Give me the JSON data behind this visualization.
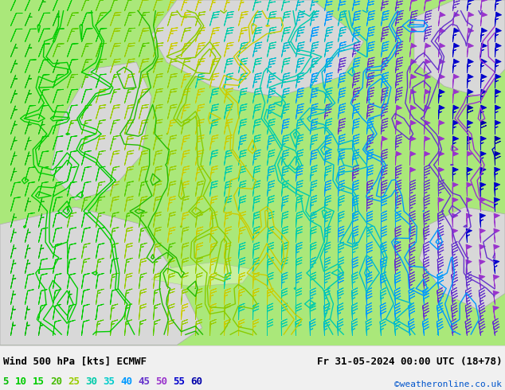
{
  "title_left": "Wind 500 hPa [kts] ECMWF",
  "title_right": "Fr 31-05-2024 00:00 UTC (18+78)",
  "credit": "©weatheronline.co.uk",
  "legend_values": [
    5,
    10,
    15,
    20,
    25,
    30,
    35,
    40,
    45,
    50,
    55,
    60
  ],
  "legend_colors": [
    "#00bb00",
    "#00cc00",
    "#00cc00",
    "#44bb00",
    "#99cc00",
    "#00ccaa",
    "#00cccc",
    "#0099ff",
    "#6633cc",
    "#9933cc",
    "#0000cc",
    "#0000aa"
  ],
  "bg_gray": "#d8d8d8",
  "bg_green": "#aae87a",
  "bg_white": "#f0f0f0",
  "bottom_bar_color": "#ffffff",
  "text_color": "#000000",
  "figsize": [
    6.34,
    4.9
  ],
  "dpi": 100,
  "speed_colors": {
    "5": "#00bb00",
    "10": "#00cc00",
    "15": "#55cc00",
    "20": "#99cc00",
    "25": "#cccc00",
    "30": "#00ccaa",
    "35": "#00bbcc",
    "40": "#0099ff",
    "45": "#6633cc",
    "50": "#9933cc",
    "55": "#0000cc",
    "60": "#0000aa"
  },
  "isoline_colors": [
    "#00cc00",
    "#00cc00",
    "#22bb00",
    "#88cc00",
    "#cccc00",
    "#00ccaa",
    "#00bbcc",
    "#0099ff",
    "#6633cc",
    "#9933cc",
    "#0000cc"
  ],
  "nx": 35,
  "ny": 22
}
